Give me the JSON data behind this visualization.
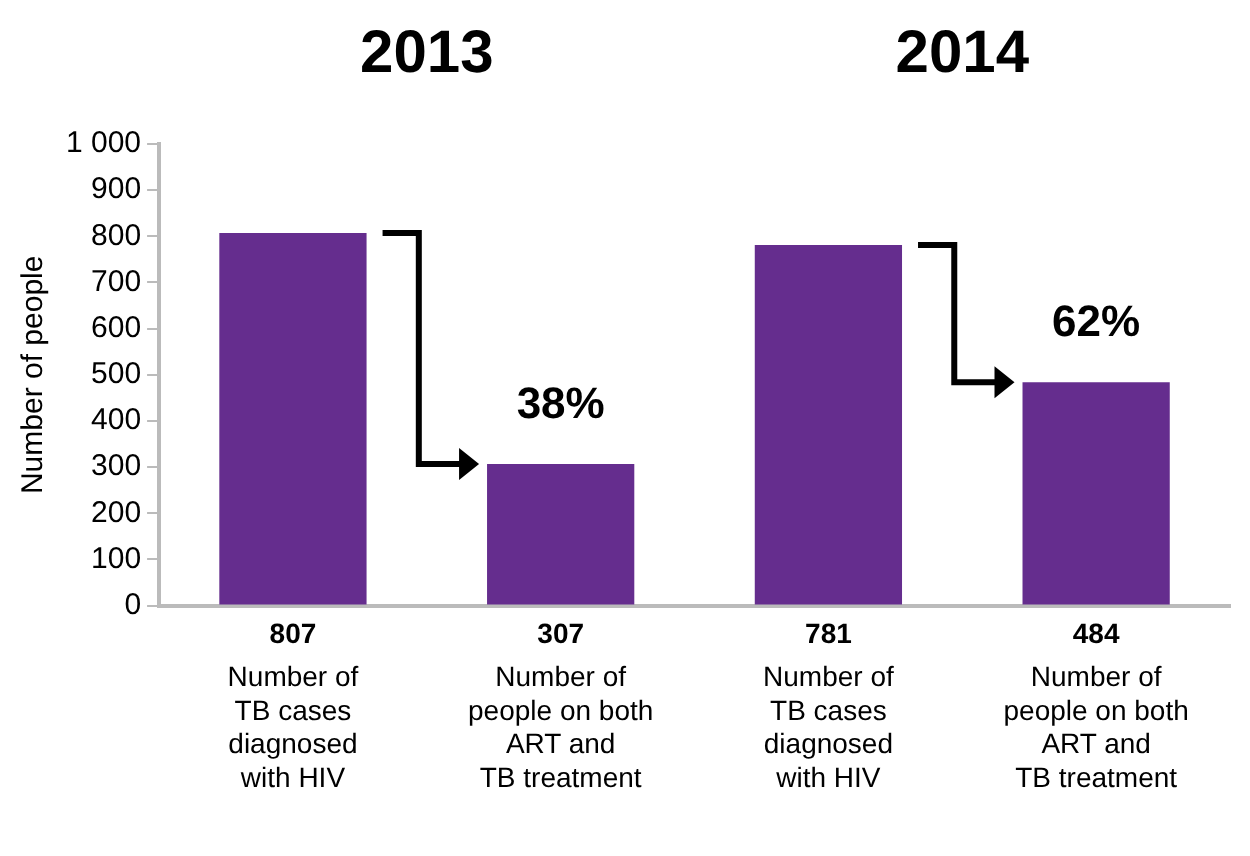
{
  "chart_data": {
    "type": "bar",
    "ylabel": "Number of people",
    "categories": [
      "Number of\nTB cases\ndiagnosed\nwith HIV",
      "Number of\npeople on both\nART and\nTB treatment",
      "Number of\nTB cases\ndiagnosed\nwith HIV",
      "Number of\npeople on both\nART and\nTB treatment"
    ],
    "values": [
      807,
      307,
      781,
      484
    ],
    "color": "#652d8e",
    "ylim": [
      0,
      1000
    ],
    "yticks": [
      0,
      100,
      200,
      300,
      400,
      500,
      600,
      700,
      800,
      900,
      {
        "value": 1000,
        "label": "1 000"
      }
    ],
    "grid": false,
    "legend": false,
    "data_labels": true,
    "annotations": [
      "2013",
      "2014",
      "38%",
      "62%"
    ]
  }
}
